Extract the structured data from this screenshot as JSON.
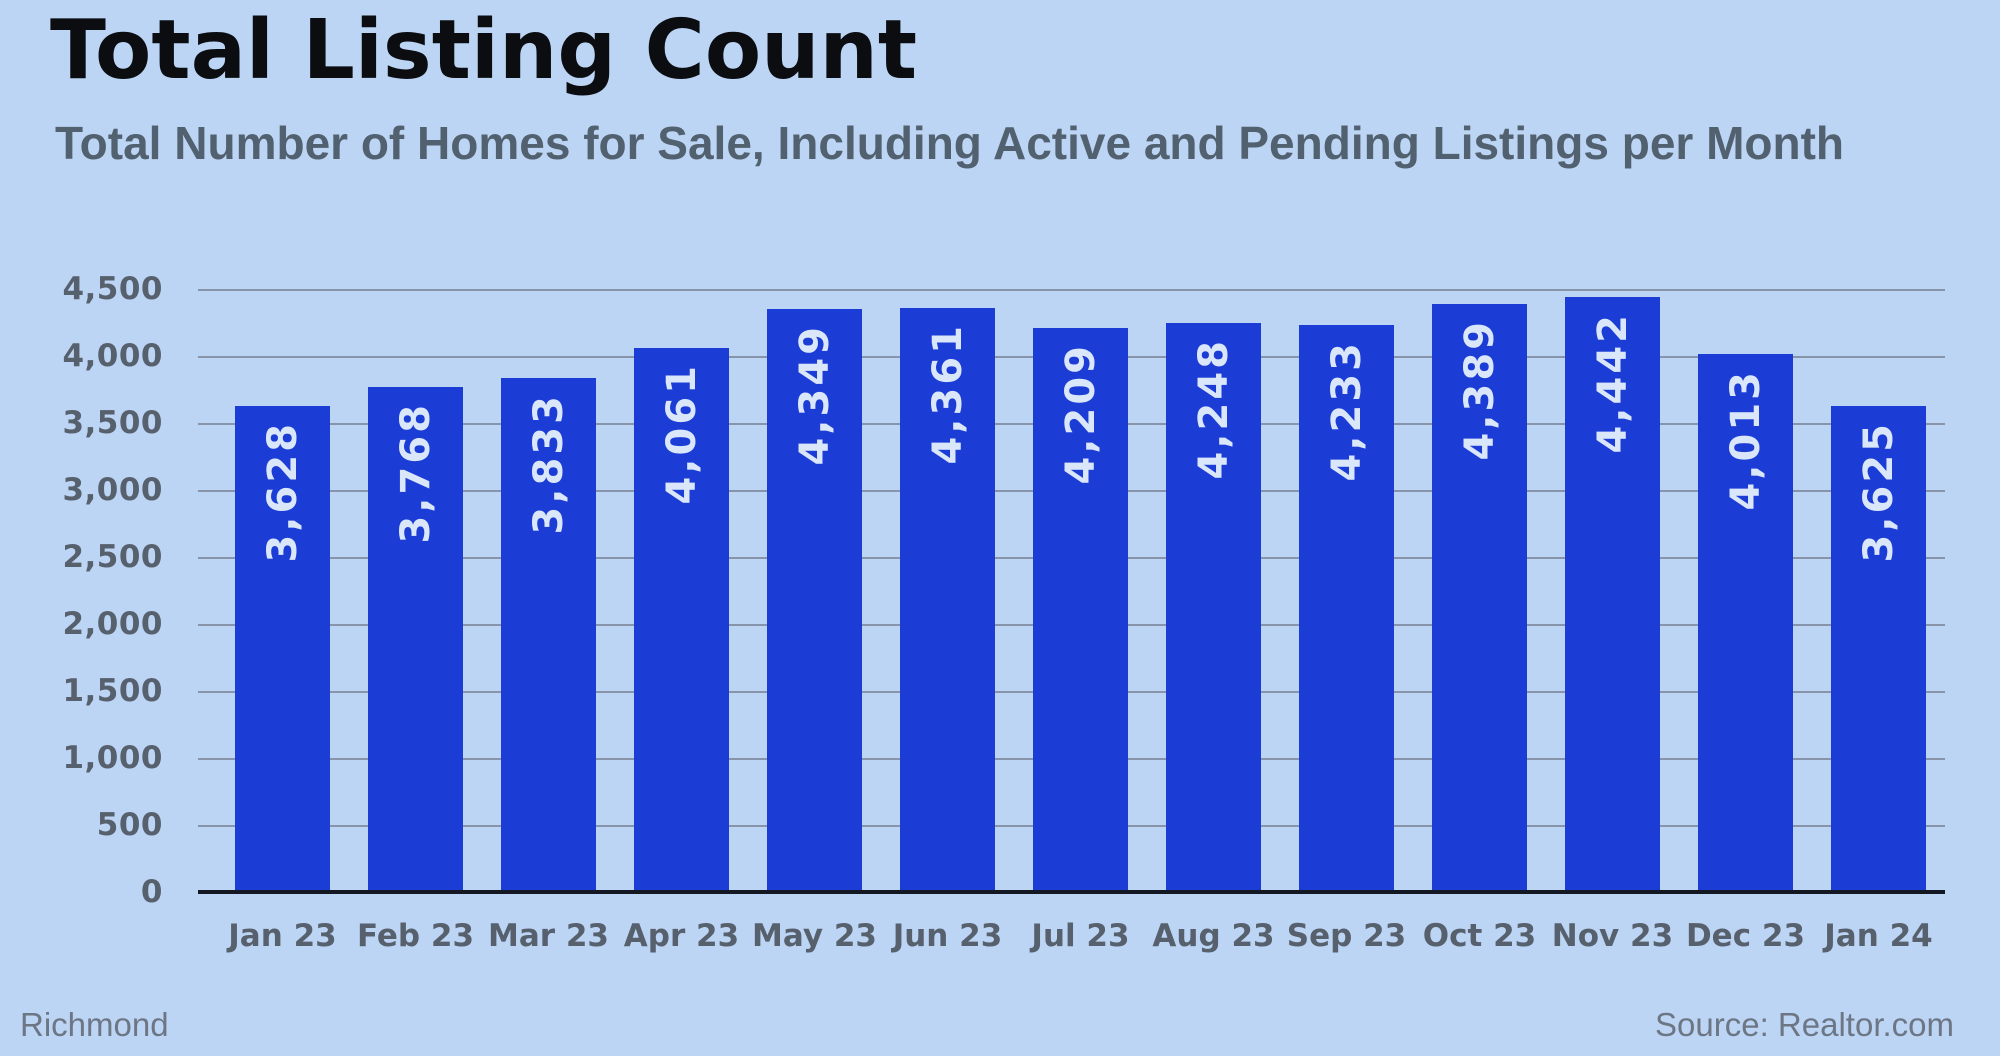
{
  "header": {
    "title": "Total Listing Count",
    "subtitle": "Total Number of Homes for Sale, Including Active and Pending Listings per Month"
  },
  "footer": {
    "region": "Richmond",
    "source": "Source: Realtor.com"
  },
  "chart_data": {
    "type": "bar",
    "title": "Total Listing Count",
    "subtitle": "Total Number of Homes for Sale, Including Active and Pending Listings per Month",
    "categories": [
      "Jan 23",
      "Feb 23",
      "Mar 23",
      "Apr 23",
      "May 23",
      "Jun 23",
      "Jul 23",
      "Aug 23",
      "Sep 23",
      "Oct 23",
      "Nov 23",
      "Dec 23",
      "Jan 24"
    ],
    "values": [
      3628,
      3768,
      3833,
      4061,
      4349,
      4361,
      4209,
      4248,
      4233,
      4389,
      4442,
      4013,
      3625
    ],
    "value_labels": [
      "3,628",
      "3,768",
      "3,833",
      "4,061",
      "4,349",
      "4,361",
      "4,209",
      "4,248",
      "4,233",
      "4,389",
      "4,442",
      "4,013",
      "3,625"
    ],
    "xlabel": "",
    "ylabel": "",
    "ylim": [
      0,
      4500
    ],
    "yticks": [
      0,
      500,
      1000,
      1500,
      2000,
      2500,
      3000,
      3500,
      4000,
      4500
    ],
    "ytick_labels": [
      "0",
      "500",
      "1,000",
      "1,500",
      "2,000",
      "2,500",
      "3,000",
      "3,500",
      "4,000",
      "4,500"
    ],
    "grid": "horizontal",
    "legend": "none",
    "bar_value_labels_rotation": -90,
    "colors": {
      "background": "#bdd5f5",
      "bar": "#1c3cd6",
      "bar_label": "#dae7fb",
      "grid_line": "#8794aa",
      "axis_line": "#131823",
      "tick_label": "#57606d",
      "title": "#0b0d11",
      "subtitle": "#52616f",
      "footer": "#6d7684"
    }
  }
}
